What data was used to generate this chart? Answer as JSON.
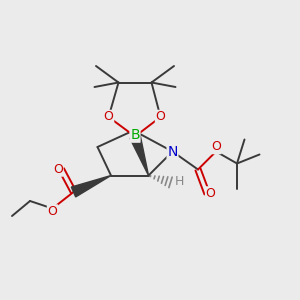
{
  "background_color": "#ebebeb",
  "atom_colors": {
    "C": "#3a3a3a",
    "O": "#cc0000",
    "N": "#0000cc",
    "B": "#00aa00",
    "H": "#888888"
  },
  "bond_color": "#3a3a3a",
  "figsize": [
    3.0,
    3.0
  ],
  "dpi": 100
}
